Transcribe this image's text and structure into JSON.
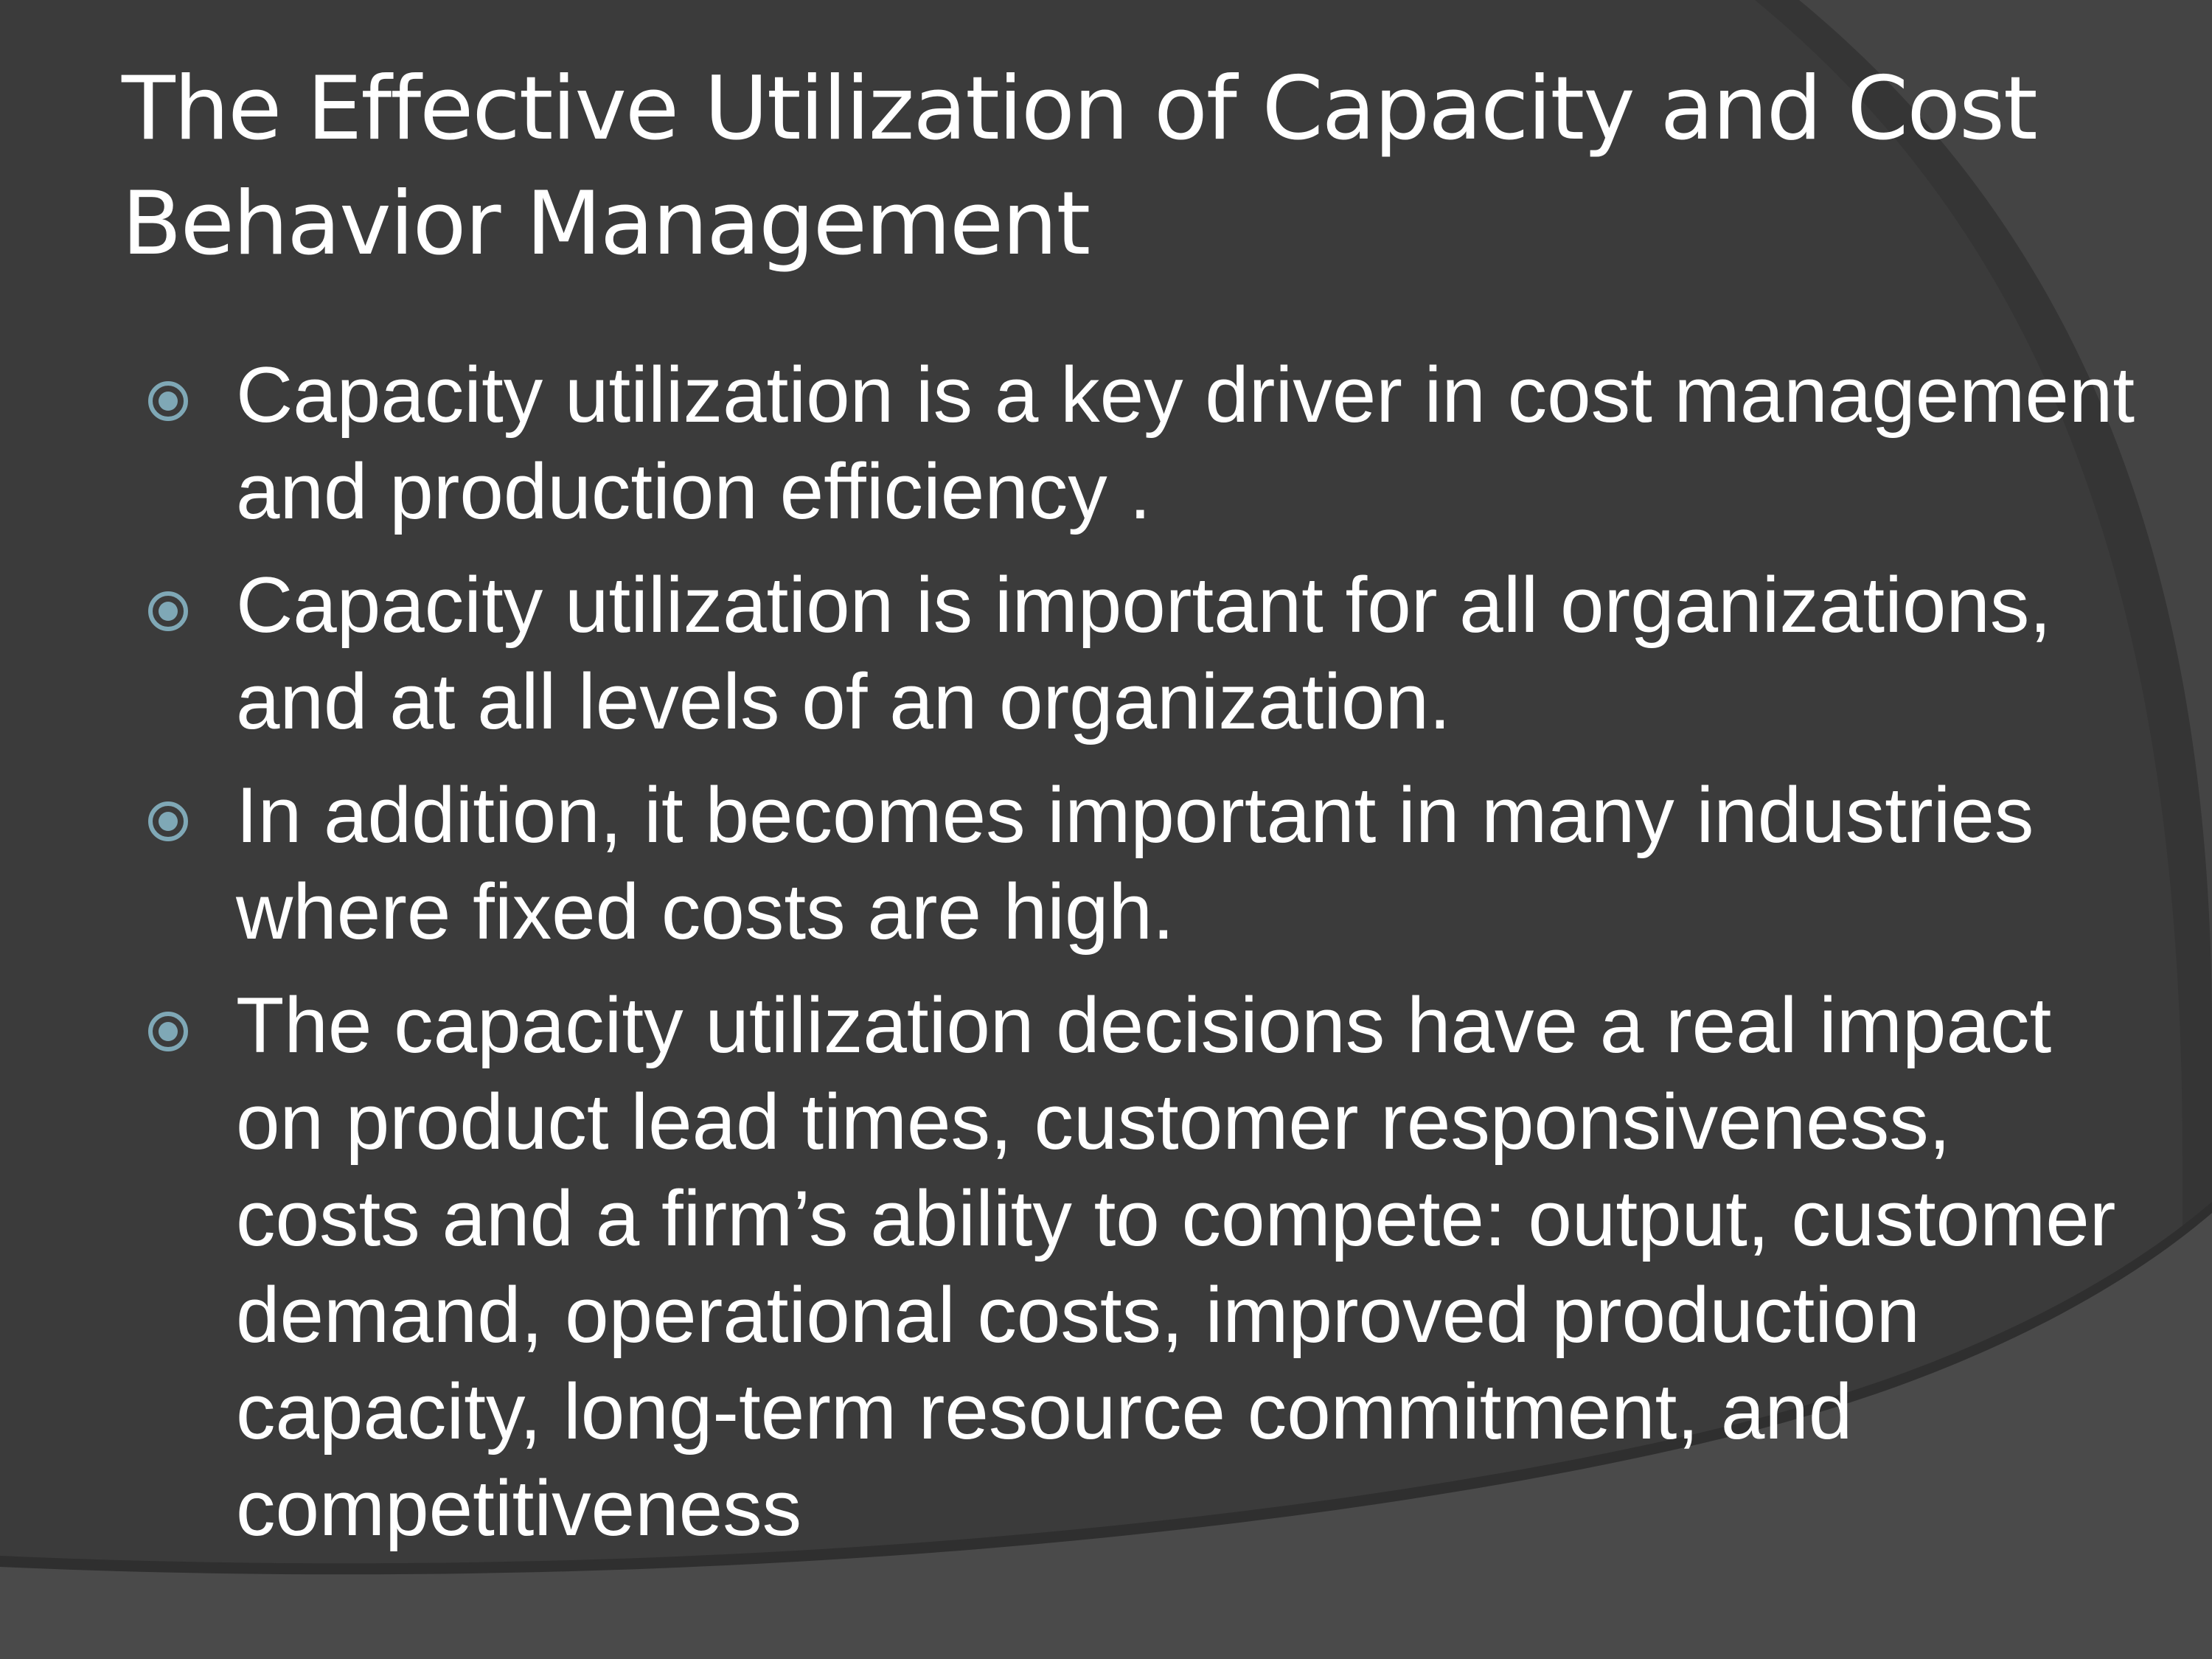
{
  "slide": {
    "title": "The Effective Utilization of Capacity and Cost Behavior Management",
    "bullets": [
      "Capacity utilization is a key driver in cost management and production efficiency .",
      "Capacity utilization is important for all organizations, and at all levels of an organization.",
      "In addition, it becomes important in many industries where fixed costs are high.",
      "The capacity utilization decisions have a real impact on product lead times, customer responsiveness, costs and a firm’s ability to compete: output, customer demand, operational costs, improved production capacity, long-term resource commitment, and competitiveness"
    ]
  },
  "theme": {
    "background": "#3b3b3b",
    "shape_light": "#4a4a4a",
    "shape_dark": "#333333",
    "text": "#ffffff",
    "bullet_accent": "#7fa8b6",
    "bullet_icon": "circled-dot-icon"
  }
}
